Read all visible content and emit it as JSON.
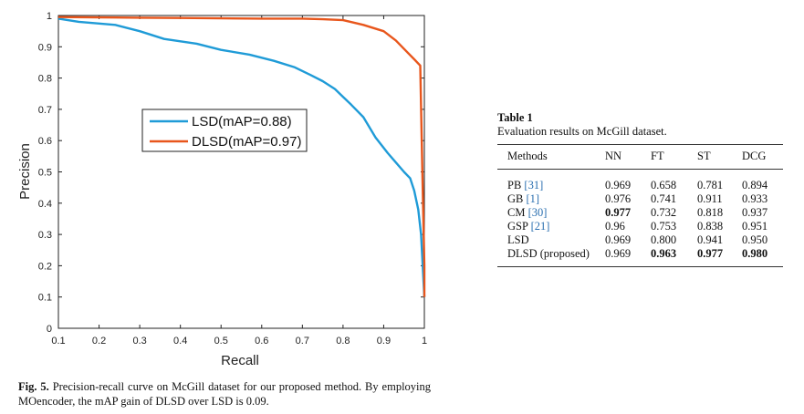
{
  "chart_data": {
    "type": "line",
    "xlabel": "Recall",
    "ylabel": "Precision",
    "xlim": [
      0.1,
      1
    ],
    "ylim": [
      0,
      1
    ],
    "xticks": [
      "0.1",
      "0.2",
      "0.3",
      "0.4",
      "0.5",
      "0.6",
      "0.7",
      "0.8",
      "0.9",
      "1"
    ],
    "yticks": [
      "0",
      "0.1",
      "0.2",
      "0.3",
      "0.4",
      "0.5",
      "0.6",
      "0.7",
      "0.8",
      "0.9",
      "1"
    ],
    "legend_position": "center",
    "series": [
      {
        "name": "LSD(mAP=0.88)",
        "color": "#1f9bd7",
        "x": [
          0.1,
          0.15,
          0.24,
          0.3,
          0.36,
          0.44,
          0.5,
          0.57,
          0.63,
          0.68,
          0.72,
          0.75,
          0.78,
          0.8,
          0.82,
          0.85,
          0.88,
          0.91,
          0.93,
          0.95,
          0.965,
          0.975,
          0.985,
          0.992,
          0.996,
          1.0
        ],
        "y": [
          0.99,
          0.98,
          0.97,
          0.95,
          0.925,
          0.91,
          0.89,
          0.875,
          0.855,
          0.835,
          0.81,
          0.79,
          0.765,
          0.74,
          0.715,
          0.675,
          0.61,
          0.56,
          0.53,
          0.5,
          0.48,
          0.44,
          0.38,
          0.3,
          0.2,
          0.1
        ]
      },
      {
        "name": "DLSD(mAP=0.97)",
        "color": "#e8561c",
        "x": [
          0.1,
          0.2,
          0.3,
          0.4,
          0.5,
          0.6,
          0.7,
          0.75,
          0.8,
          0.85,
          0.9,
          0.93,
          0.96,
          0.975,
          0.99,
          0.995,
          1.0,
          1.0
        ],
        "y": [
          0.995,
          0.994,
          0.993,
          0.992,
          0.991,
          0.99,
          0.99,
          0.988,
          0.985,
          0.97,
          0.95,
          0.92,
          0.88,
          0.86,
          0.84,
          0.5,
          0.2,
          0.1
        ]
      }
    ]
  },
  "figure": {
    "caption_label": "Fig. 5.",
    "caption_text": " Precision-recall curve on McGill dataset for our proposed method. By employing MOencoder, the mAP gain of DLSD over LSD is 0.09."
  },
  "table": {
    "label": "Table 1",
    "caption": "Evaluation results on McGill dataset.",
    "headers": [
      "Methods",
      "NN",
      "FT",
      "ST",
      "DCG"
    ],
    "rows": [
      {
        "method": "PB",
        "cite": "[31]",
        "nn": "0.969",
        "ft": "0.658",
        "st": "0.781",
        "dcg": "0.894",
        "bold": []
      },
      {
        "method": "GB",
        "cite": "[1]",
        "nn": "0.976",
        "ft": "0.741",
        "st": "0.911",
        "dcg": "0.933",
        "bold": []
      },
      {
        "method": "CM",
        "cite": "[30]",
        "nn": "0.977",
        "ft": "0.732",
        "st": "0.818",
        "dcg": "0.937",
        "bold": [
          "nn"
        ]
      },
      {
        "method": "GSP",
        "cite": "[21]",
        "nn": "0.96",
        "ft": "0.753",
        "st": "0.838",
        "dcg": "0.951",
        "bold": []
      },
      {
        "method": "LSD",
        "cite": "",
        "nn": "0.969",
        "ft": "0.800",
        "st": "0.941",
        "dcg": "0.950",
        "bold": []
      },
      {
        "method": "DLSD (proposed)",
        "cite": "",
        "nn": "0.969",
        "ft": "0.963",
        "st": "0.977",
        "dcg": "0.980",
        "bold": [
          "ft",
          "st",
          "dcg"
        ]
      }
    ]
  }
}
